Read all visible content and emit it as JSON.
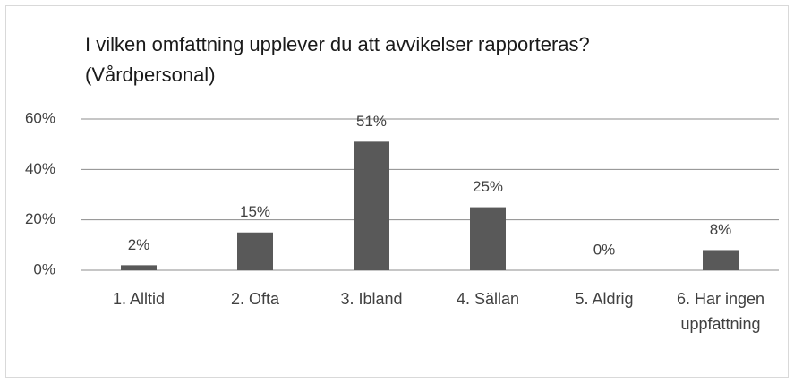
{
  "chart_data": {
    "type": "bar",
    "title": "I vilken omfattning upplever du att avvikelser rapporteras? (Vårdpersonal)",
    "categories": [
      "1. Alltid",
      "2. Ofta",
      "3. Ibland",
      "4. Sällan",
      "5. Aldrig",
      "6. Har ingen uppfattning"
    ],
    "values": [
      2,
      15,
      51,
      25,
      0,
      8
    ],
    "value_labels": [
      "2%",
      "15%",
      "51%",
      "25%",
      "0%",
      "8%"
    ],
    "color": "#595959",
    "ylim": [
      0,
      60
    ],
    "yticks": [
      {
        "value": 0,
        "label": "0%"
      },
      {
        "value": 20,
        "label": "20%"
      },
      {
        "value": 40,
        "label": "40%"
      },
      {
        "value": 60,
        "label": "60%"
      }
    ],
    "grid": true
  }
}
